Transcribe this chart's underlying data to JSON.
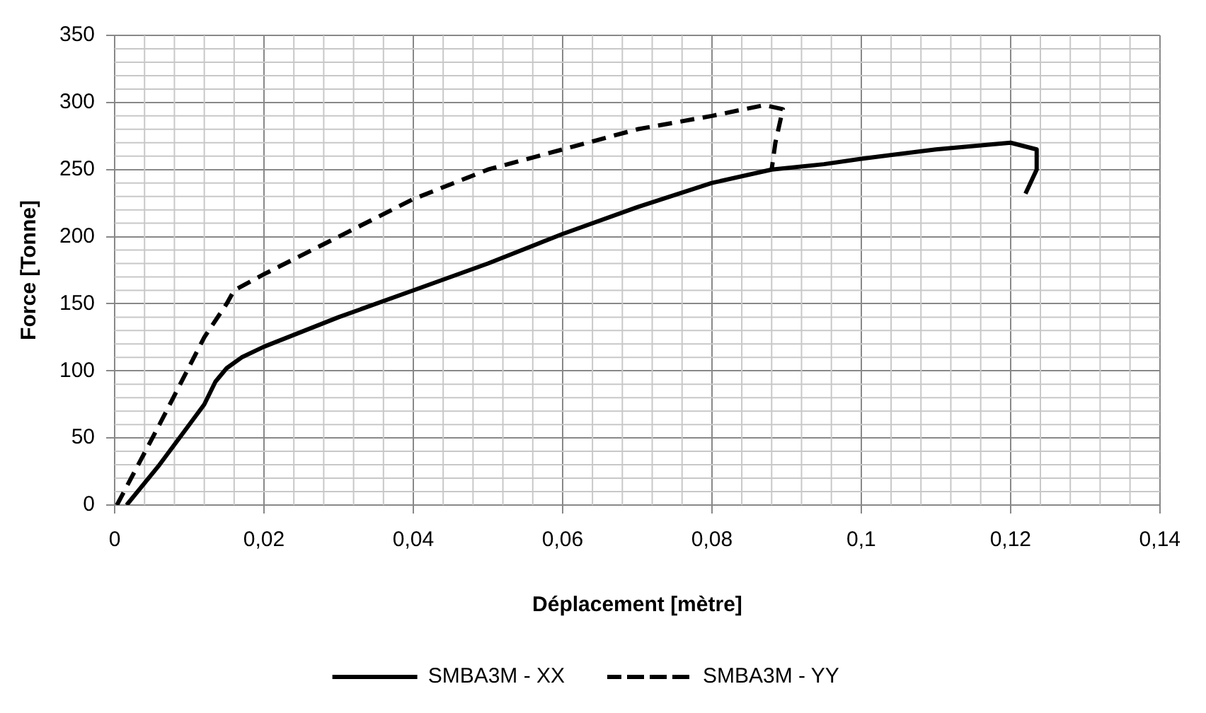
{
  "chart_data": {
    "type": "line",
    "xlabel": "Déplacement [mètre]",
    "ylabel": "Force [Tonne]",
    "xlim": [
      0,
      0.14
    ],
    "xticks": [
      {
        "value": 0,
        "label": "0"
      },
      {
        "value": 0.02,
        "label": "0,02"
      },
      {
        "value": 0.04,
        "label": "0,04"
      },
      {
        "value": 0.06,
        "label": "0,06"
      },
      {
        "value": 0.08,
        "label": "0,08"
      },
      {
        "value": 0.1,
        "label": "0,1"
      },
      {
        "value": 0.12,
        "label": "0,12"
      },
      {
        "value": 0.14,
        "label": "0,14"
      }
    ],
    "ylim": [
      0,
      350
    ],
    "yticks": [
      0,
      50,
      100,
      150,
      200,
      250,
      300,
      350
    ],
    "grid": true,
    "legend": "bottom",
    "marker": "none",
    "series": [
      {
        "name": "SMBA3M - XX",
        "color": "#000000",
        "line_style": "solid",
        "x": [
          0.0016,
          0.006,
          0.012,
          0.0135,
          0.015,
          0.017,
          0.02,
          0.03,
          0.04,
          0.05,
          0.06,
          0.07,
          0.08,
          0.088,
          0.095,
          0.1,
          0.11,
          0.12,
          0.1235,
          0.1235,
          0.122
        ],
        "values": [
          0,
          30,
          75,
          92,
          102,
          110,
          118,
          140,
          160,
          180,
          202,
          222,
          240,
          250,
          254,
          258,
          265,
          270,
          265,
          250,
          232
        ]
      },
      {
        "name": "SMBA3M - YY",
        "color": "#000000",
        "line_style": "dashed",
        "x": [
          0.0003,
          0.006,
          0.012,
          0.015,
          0.016,
          0.02,
          0.03,
          0.04,
          0.05,
          0.06,
          0.07,
          0.08,
          0.087,
          0.0895,
          0.0885,
          0.088
        ],
        "values": [
          0,
          60,
          125,
          150,
          160,
          172,
          200,
          228,
          250,
          265,
          280,
          290,
          298,
          295,
          270,
          250
        ]
      }
    ]
  }
}
